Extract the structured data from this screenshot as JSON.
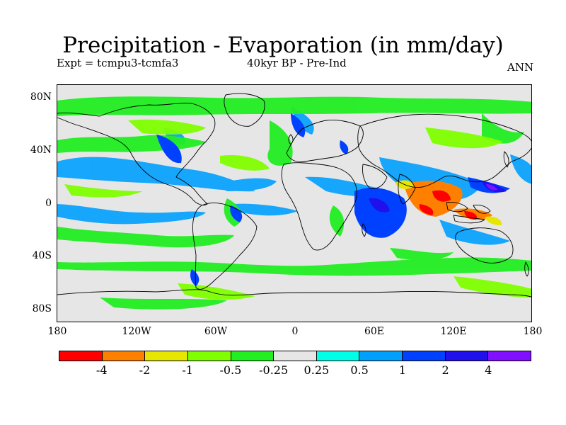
{
  "title": "Precipitation - Evaporation (in mm/day)",
  "expt_label": "Expt = tcmpu3-tcmfa3",
  "period_label": "40kyr BP - Pre-Ind",
  "season_label": "ANN",
  "axes": {
    "lat_ticks": [
      "80N",
      "40N",
      "0",
      "40S",
      "80S"
    ],
    "lon_ticks": [
      "180",
      "120W",
      "60W",
      "0",
      "60E",
      "120E",
      "180"
    ]
  },
  "colorbar": {
    "colors": [
      "#ff0000",
      "#ff8000",
      "#e6e600",
      "#80ff00",
      "#22ee22",
      "#e6e6e6",
      "#00ffe6",
      "#00a0ff",
      "#0040ff",
      "#2010ee",
      "#8010ff"
    ],
    "labels": [
      "-4",
      "-2",
      "-1",
      "-0.5",
      "-0.25",
      "0.25",
      "0.5",
      "1",
      "2",
      "4"
    ]
  },
  "colors": {
    "background": "#e6e6e6",
    "coastline": "#000000"
  }
}
